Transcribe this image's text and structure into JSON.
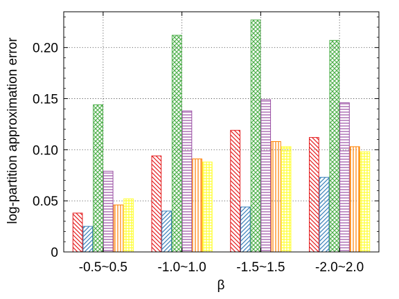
{
  "chart_data": {
    "type": "bar",
    "title": "",
    "xlabel": "β",
    "ylabel": "log-partition approximation error",
    "categories": [
      "-0.5~0.5",
      "-1.0~1.0",
      "-1.5~1.5",
      "-2.0~2.0"
    ],
    "ylim": [
      0,
      0.235
    ],
    "yticks": [
      0,
      0.05,
      0.1,
      0.15,
      0.2
    ],
    "ytick_labels": [
      "0",
      "0.05",
      "0.10",
      "0.15",
      "0.20"
    ],
    "grid": true,
    "legend": "none",
    "series": [
      {
        "values": [
          0.038,
          0.094,
          0.119,
          0.112
        ],
        "color": "#e41a1c",
        "pattern": "diagonal-back"
      },
      {
        "values": [
          0.025,
          0.04,
          0.044,
          0.073
        ],
        "color": "#377eb8",
        "pattern": "diagonal-forward"
      },
      {
        "values": [
          0.144,
          0.212,
          0.227,
          0.207
        ],
        "color": "#4daf4a",
        "pattern": "crosshatch"
      },
      {
        "values": [
          0.079,
          0.138,
          0.149,
          0.146
        ],
        "color": "#984ea3",
        "pattern": "horizontal"
      },
      {
        "values": [
          0.046,
          0.091,
          0.108,
          0.103
        ],
        "color": "#ff7f00",
        "pattern": "vertical"
      },
      {
        "values": [
          0.052,
          0.088,
          0.103,
          0.098
        ],
        "color": "#ffff33",
        "pattern": "grid"
      }
    ]
  }
}
